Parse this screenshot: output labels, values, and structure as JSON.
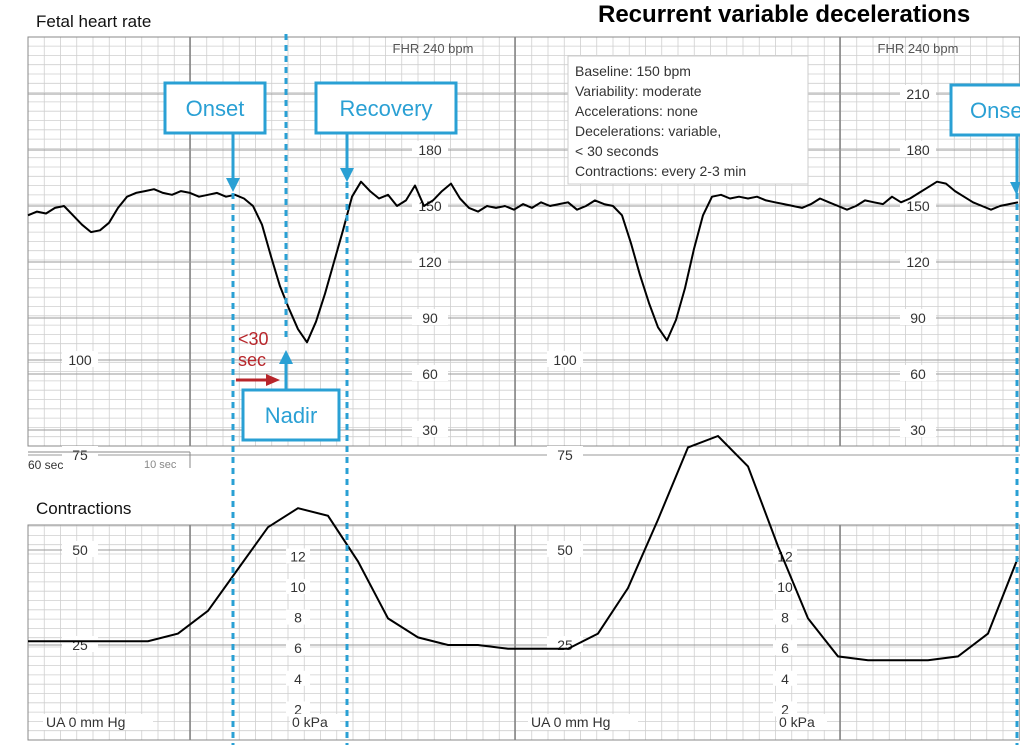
{
  "title": "Recurrent variable decelerations",
  "fhr": {
    "label": "Fetal heart rate",
    "header_labels": [
      "FHR 240 bpm",
      "FHR 240 bpm"
    ],
    "scale_cols": [
      {
        "ticks": [
          180,
          150,
          120,
          90,
          60,
          30
        ]
      },
      {
        "ticks": [
          210,
          180,
          150,
          120,
          90,
          60,
          30
        ]
      }
    ]
  },
  "time_scale": {
    "major_label": "60 sec",
    "minor_label": "10 sec"
  },
  "summary": [
    "Baseline: 150 bpm",
    "Variability: moderate",
    "Accelerations: none",
    "Decelerations: variable,",
    "< 30 seconds",
    "Contractions: every 2-3 min"
  ],
  "callouts": {
    "onset": "Onset",
    "recovery": "Recovery",
    "nadir": "Nadir",
    "onset_2": "Onset",
    "duration_line1": "<30",
    "duration_line2": "sec"
  },
  "contractions": {
    "label": "Contractions",
    "ua_ticks": [
      100,
      75,
      50,
      25
    ],
    "kpa_ticks": [
      12,
      10,
      8,
      6,
      4,
      2
    ],
    "ua_unit": "UA  0  mm Hg",
    "kpa_unit": "0  kPa"
  },
  "colors": {
    "callout": "#2aa0d4",
    "arrow": "#b8262b",
    "trace": "#000000",
    "grid_major": "#777777",
    "grid_minor": "#c8c8c8"
  },
  "chart_data": [
    {
      "type": "line",
      "title": "Fetal heart rate",
      "ylabel": "FHR (bpm)",
      "ylim": [
        0,
        240
      ],
      "x_unit": "sec",
      "series": [
        {
          "values_x": [
            0,
            3,
            6,
            9,
            12,
            15,
            18,
            21,
            24,
            27,
            30,
            33,
            36,
            39,
            42,
            45,
            48,
            51,
            54,
            57,
            60,
            63,
            66,
            69,
            72,
            75,
            78,
            81,
            84,
            87,
            90,
            93,
            96,
            99,
            102,
            105,
            108,
            111,
            114,
            117,
            120,
            123,
            126,
            129,
            132,
            135,
            138,
            141,
            144,
            147,
            150,
            153,
            156,
            159,
            162,
            165,
            168,
            171,
            174,
            177,
            180,
            183,
            186,
            189,
            192,
            195,
            198,
            201,
            204,
            207,
            210,
            213,
            216,
            219,
            222,
            225,
            228,
            231,
            234,
            237,
            240,
            243,
            246,
            249,
            252,
            255,
            258,
            261,
            264,
            267,
            270,
            273,
            276,
            279,
            282,
            285,
            288,
            291,
            294,
            297,
            300,
            303,
            306,
            309,
            312,
            315,
            318,
            321,
            324,
            327,
            330
          ],
          "values_y": [
            145,
            147,
            146,
            149,
            150,
            145,
            140,
            136,
            137,
            141,
            149,
            155,
            157,
            158,
            159,
            157,
            156,
            158,
            157,
            155,
            156,
            157,
            155,
            156,
            154,
            150,
            140,
            123,
            107,
            95,
            84,
            77,
            88,
            103,
            120,
            137,
            155,
            163,
            158,
            154,
            156,
            150,
            153,
            161,
            150,
            153,
            158,
            162,
            154,
            149,
            147,
            150,
            149,
            150,
            148,
            151,
            149,
            152,
            150,
            151,
            152,
            148,
            150,
            153,
            151,
            150,
            145,
            130,
            113,
            98,
            85,
            78,
            89,
            106,
            127,
            145,
            155,
            156,
            154,
            155,
            154,
            155,
            153,
            152,
            151,
            150,
            149,
            151,
            154,
            152,
            150,
            148,
            150,
            153,
            152,
            151,
            155,
            152,
            154,
            157,
            160,
            163,
            162,
            158,
            155,
            152,
            150,
            148,
            150,
            151,
            152
          ]
        }
      ]
    },
    {
      "type": "line",
      "title": "Contractions",
      "ylabel": "UA (mm Hg)",
      "ylim": [
        0,
        100
      ],
      "x_unit": "sec",
      "series": [
        {
          "values_x": [
            0,
            10,
            20,
            30,
            40,
            50,
            60,
            70,
            80,
            90,
            100,
            110,
            120,
            130,
            140,
            150,
            160,
            170,
            180,
            190,
            200,
            210,
            220,
            230,
            240,
            250,
            260,
            270,
            280,
            290,
            300,
            310,
            320,
            330
          ],
          "values_y": [
            26,
            26,
            26,
            26,
            26,
            28,
            34,
            45,
            56,
            61,
            59,
            47,
            32,
            27,
            25,
            25,
            24,
            24,
            24,
            28,
            40,
            58,
            77,
            80,
            72,
            51,
            32,
            22,
            21,
            21,
            21,
            22,
            28,
            48
          ]
        }
      ]
    }
  ]
}
